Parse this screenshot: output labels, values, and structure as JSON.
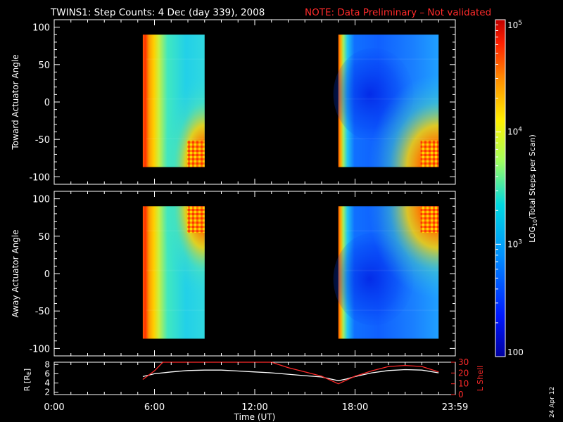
{
  "title": {
    "main": "TWINS1: Step Counts:  4 Dec (day 339), 2008",
    "note": "NOTE: Data Preliminary – Not validated"
  },
  "colors": {
    "background": "#000000",
    "axes": "#ffffff",
    "note": "#ff2a2a",
    "r_line": "#ffffff",
    "lshell_line": "#ff2a2a",
    "colormap": [
      "#0000a0",
      "#0010ff",
      "#0088ff",
      "#00d8e8",
      "#a8ff5a",
      "#fff000",
      "#ff9000",
      "#ff2000",
      "#c00000"
    ]
  },
  "chart_data": [
    {
      "type": "heatmap",
      "ylabel": "Toward Actuator Angle",
      "ylim": [
        -110,
        110
      ],
      "yticks": [
        "100",
        "50",
        "0",
        "-50",
        "-100"
      ],
      "ytick_values": [
        100,
        50,
        0,
        -50,
        -100
      ],
      "xlim_hours": [
        0,
        24
      ],
      "data_blocks_hours": [
        [
          5.3,
          9.0
        ],
        [
          17.0,
          23.0
        ]
      ],
      "angle_range": [
        -87,
        90
      ]
    },
    {
      "type": "heatmap",
      "ylabel": "Away Actuator Angle",
      "ylim": [
        -110,
        110
      ],
      "yticks": [
        "100",
        "50",
        "0",
        "-50",
        "-100"
      ],
      "ytick_values": [
        100,
        50,
        0,
        -50,
        -100
      ],
      "xlim_hours": [
        0,
        24
      ],
      "data_blocks_hours": [
        [
          5.3,
          9.0
        ],
        [
          17.0,
          23.0
        ]
      ],
      "angle_range": [
        -87,
        90
      ]
    },
    {
      "type": "line",
      "ylabel": "R [R",
      "ylabel_sub": "E",
      "ylabel_close": "]",
      "yticks": [
        "8",
        "6",
        "4",
        "2"
      ],
      "ytick_values": [
        8,
        6,
        4,
        2
      ],
      "ylim": [
        1.5,
        8.5
      ],
      "y2label": "L Shell",
      "y2ticks": [
        "30",
        "20",
        "10",
        "0"
      ],
      "y2tick_values": [
        30,
        20,
        10,
        0
      ],
      "y2lim": [
        0,
        30
      ],
      "xlabel": "Time (UT)",
      "xticks": [
        "0:00",
        "6:00",
        "12:00",
        "18:00",
        "23:59"
      ],
      "xtick_values": [
        0,
        6,
        12,
        18,
        23.98
      ],
      "series": [
        {
          "axis": "left",
          "x": [
            5.3,
            6.0,
            7.0,
            8.0,
            9.0,
            10.0,
            11.0,
            12.0,
            13.0,
            14.0,
            15.0,
            16.0,
            17.0,
            17.5,
            18.0,
            19.0,
            20.0,
            21.0,
            22.0,
            23.0
          ],
          "y": [
            5.4,
            6.0,
            6.4,
            6.7,
            6.8,
            6.8,
            6.6,
            6.4,
            6.2,
            5.9,
            5.6,
            5.3,
            4.5,
            4.9,
            5.4,
            6.2,
            6.7,
            6.9,
            6.8,
            6.2
          ]
        },
        {
          "axis": "right",
          "x": [
            5.3,
            6.0,
            6.5,
            11.0,
            13.0,
            14.0,
            15.0,
            16.0,
            17.0,
            18.0,
            19.0,
            20.0,
            21.0,
            22.0,
            23.0
          ],
          "y": [
            14,
            22,
            30,
            30,
            30,
            25,
            21,
            17,
            10,
            17,
            22,
            26,
            27,
            26,
            21
          ]
        }
      ]
    }
  ],
  "colorbar": {
    "label_prefix": "LOG",
    "label_sub": "10",
    "label_suffix": "(Total Steps per Scan)",
    "ticks": [
      {
        "base": "10",
        "exp": "5",
        "value": 100000
      },
      {
        "base": "10",
        "exp": "4",
        "value": 10000
      },
      {
        "base": "10",
        "exp": "3",
        "value": 1000
      },
      {
        "base": "100",
        "exp": "",
        "value": 100
      }
    ]
  },
  "date_stamp": "24 Apr 12"
}
